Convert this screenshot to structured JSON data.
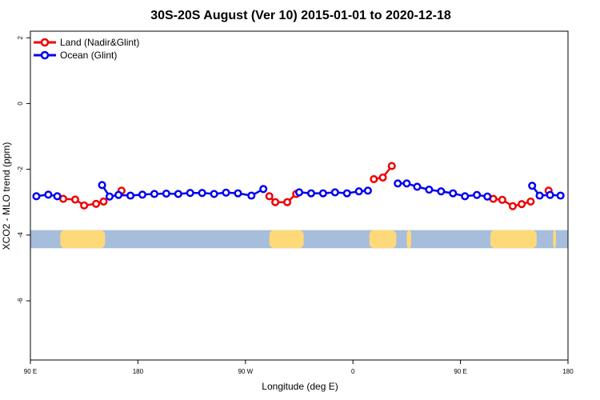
{
  "chart_data": {
    "type": "line",
    "title": "30S-20S August (Ver 10)   2015-01-01 to 2020-12-18",
    "xlabel": "Longitude (deg E)",
    "ylabel": "XCO2 - MLO trend (ppm)",
    "x_ticks": [
      "90 E",
      "180",
      "90 W",
      "0",
      "90 E",
      "180"
    ],
    "y_ticks": [
      "2",
      "0",
      "-2",
      "-4",
      "-6"
    ],
    "xlim": [
      0,
      360
    ],
    "ylim": [
      -7.8,
      2.2
    ],
    "grid": false,
    "legend_position": "top-left",
    "colors": {
      "land": "#ee0000",
      "ocean": "#0000ee",
      "ocean_band": "#a6bddb",
      "land_band": "#fdd97a"
    },
    "series": [
      {
        "name": "Land (Nadir&Glint)",
        "color": "#ee0000",
        "segments": [
          {
            "x": [
              22,
              30,
              36,
              44,
              49
            ],
            "y": [
              -2.9,
              -2.92,
              -3.1,
              -3.05,
              -2.98
            ]
          },
          {
            "x": [
              61
            ],
            "y": [
              -2.65
            ]
          },
          {
            "x": [
              160,
              164,
              172,
              178
            ],
            "y": [
              -2.82,
              -3.0,
              -3.0,
              -2.75
            ]
          },
          {
            "x": [
              230,
              236,
              242
            ],
            "y": [
              -2.3,
              -2.25,
              -1.9
            ]
          },
          {
            "x": [
              310,
              316,
              323,
              329,
              335
            ],
            "y": [
              -2.9,
              -2.93,
              -3.12,
              -3.06,
              -2.98
            ]
          },
          {
            "x": [
              347
            ],
            "y": [
              -2.65
            ]
          }
        ]
      },
      {
        "name": "Ocean (Glint)",
        "color": "#0000ee",
        "segments": [
          {
            "x": [
              4,
              12,
              18
            ],
            "y": [
              -2.82,
              -2.77,
              -2.82
            ]
          },
          {
            "x": [
              48,
              53,
              59,
              67,
              75,
              83,
              91,
              99,
              107,
              115,
              123,
              131,
              139,
              148,
              156
            ],
            "y": [
              -2.48,
              -2.83,
              -2.78,
              -2.8,
              -2.77,
              -2.75,
              -2.74,
              -2.75,
              -2.72,
              -2.72,
              -2.75,
              -2.71,
              -2.73,
              -2.8,
              -2.6
            ]
          },
          {
            "x": [
              180,
              188,
              196,
              204,
              212,
              220,
              226
            ],
            "y": [
              -2.7,
              -2.73,
              -2.73,
              -2.7,
              -2.73,
              -2.67,
              -2.65
            ]
          },
          {
            "x": [
              246,
              252,
              259,
              267,
              275,
              283,
              291,
              299,
              306
            ],
            "y": [
              -2.43,
              -2.43,
              -2.53,
              -2.62,
              -2.67,
              -2.73,
              -2.82,
              -2.78,
              -2.83
            ]
          },
          {
            "x": [
              336,
              341,
              348,
              355
            ],
            "y": [
              -2.5,
              -2.8,
              -2.78,
              -2.8
            ]
          }
        ]
      }
    ],
    "land_mask": [
      [
        20,
        50
      ],
      [
        160,
        183
      ],
      [
        227,
        245
      ],
      [
        252,
        255
      ],
      [
        308,
        339
      ],
      [
        350,
        352
      ]
    ]
  }
}
